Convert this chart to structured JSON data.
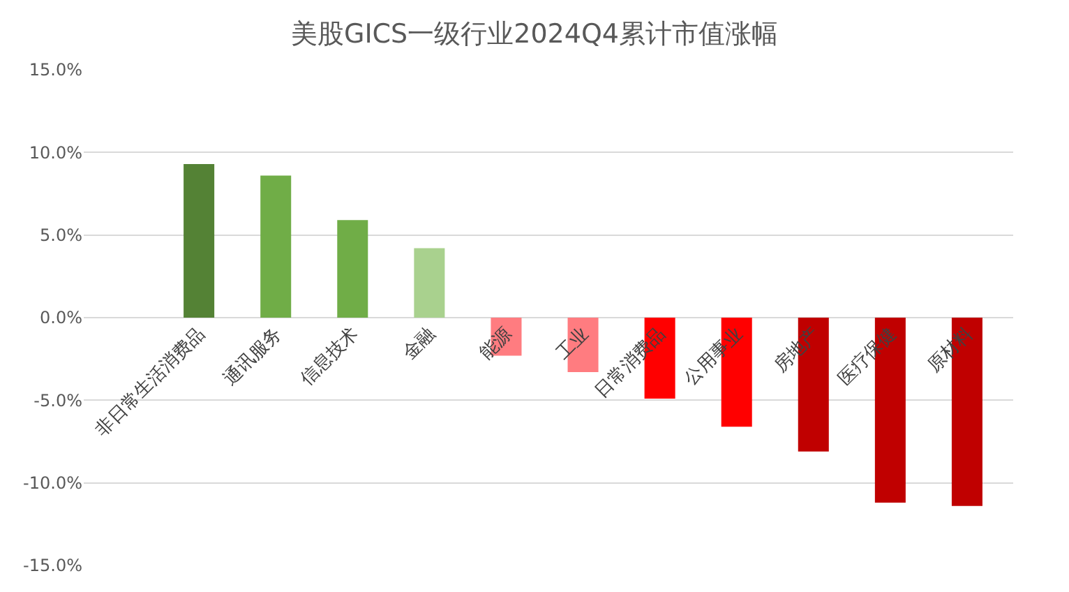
{
  "chart_data": {
    "type": "bar",
    "title": "美股GICS一级行业2024Q4累计市值涨幅",
    "categories": [
      "非日常生活消费品",
      "通讯服务",
      "信息技术",
      "金融",
      "能源",
      "工业",
      "日常消费品",
      "公用事业",
      "房地产",
      "医疗保健",
      "原材料"
    ],
    "values": [
      9.3,
      8.6,
      5.9,
      4.2,
      -2.3,
      -3.3,
      -4.9,
      -6.6,
      -8.1,
      -11.2,
      -11.4
    ],
    "colors": [
      "#548235",
      "#70ad47",
      "#70ad47",
      "#a9d18e",
      "#ff7c80",
      "#ff7c80",
      "#ff0000",
      "#ff0000",
      "#c00000",
      "#c00000",
      "#c00000"
    ],
    "ylim": [
      -15,
      15
    ],
    "yticks": [
      {
        "value": -15,
        "label": "-15.0%"
      },
      {
        "value": -10,
        "label": "-10.0%"
      },
      {
        "value": -5,
        "label": "-5.0%"
      },
      {
        "value": 0,
        "label": "0.0%"
      },
      {
        "value": 5,
        "label": "5.0%"
      },
      {
        "value": 10,
        "label": "10.0%"
      },
      {
        "value": 15,
        "label": "15.0%"
      }
    ],
    "grid": "y"
  }
}
